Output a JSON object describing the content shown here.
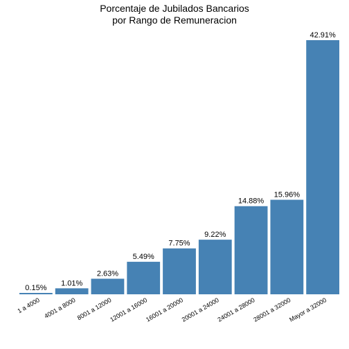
{
  "chart_data": {
    "type": "bar",
    "title_line1": "Porcentaje de Jubilados Bancarios",
    "title_line2": "por Rango de Remuneracion",
    "xlabel": "",
    "ylabel": "",
    "categories": [
      "1 a 4000",
      "4001 a 8000",
      "8001 a 12000",
      "12001 a 16000",
      "16001 a 20000",
      "20001 a 24000",
      "24001 a 28000",
      "28001 a 32000",
      "Mayor a 32000"
    ],
    "values": [
      0.15,
      1.01,
      2.63,
      5.49,
      7.75,
      9.22,
      14.88,
      15.96,
      42.91
    ],
    "data_labels": [
      "0.15%",
      "1.01%",
      "2.63%",
      "5.49%",
      "7.75%",
      "9.22%",
      "14.88%",
      "15.96%",
      "42.91%"
    ],
    "ylim": [
      0,
      42.91
    ],
    "grid": false,
    "bar_color": "#4682b4"
  }
}
